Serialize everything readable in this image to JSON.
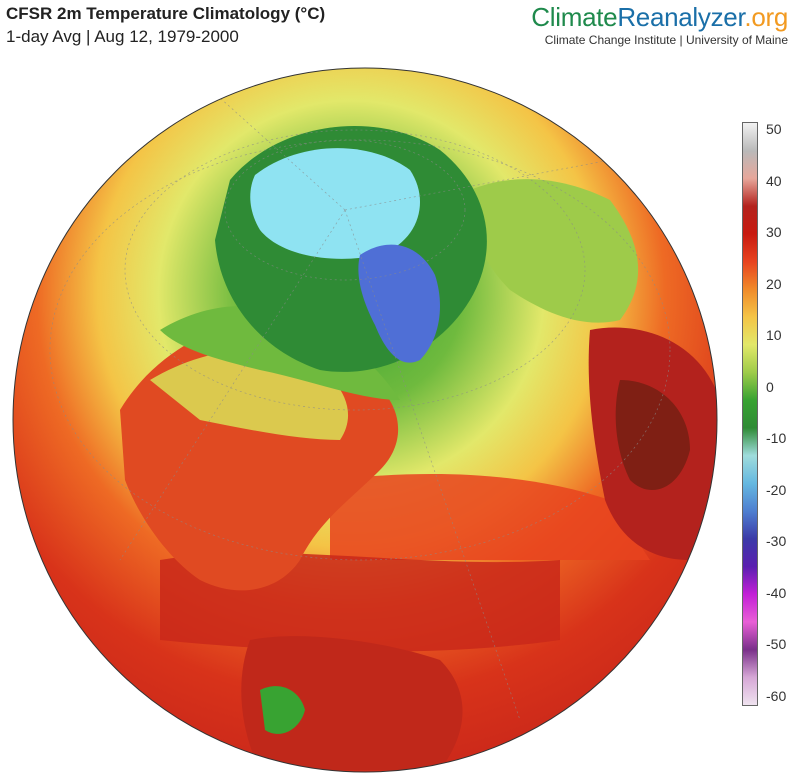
{
  "header": {
    "title": "CFSR 2m Temperature Climatology (°C)",
    "subtitle": "1-day Avg | Aug 12, 1979-2000"
  },
  "brand": {
    "part1": "Climate",
    "part2": "Reanalyzer",
    "part3": ".org",
    "tagline": "Climate Change Institute | University of Maine"
  },
  "colorbar": {
    "ticks": [
      "50",
      "40",
      "30",
      "20",
      "10",
      "0",
      "-10",
      "-20",
      "-30",
      "-40",
      "-50",
      "-60"
    ],
    "stops": [
      "#f2f2f2",
      "#b9b9b9",
      "#e7a79b",
      "#b3221d",
      "#c81a10",
      "#e8431f",
      "#f08a2a",
      "#f4c446",
      "#e2e86a",
      "#9ecb4a",
      "#38a332",
      "#2f8b35",
      "#9fdcdc",
      "#65b8e0",
      "#4f7fd0",
      "#3b3aa8",
      "#5a1fb0",
      "#c21fd6",
      "#e85fd6",
      "#7a2f8a",
      "#d6a7d6",
      "#efe3ef"
    ]
  },
  "map": {
    "projection": "orthographic",
    "view": "North America, North Atlantic, Europe, Africa, northern South America",
    "colors": {
      "ocean_hot": "#d8331a",
      "ocean_warm": "#ee6a24",
      "mid_lat": "#f4c04a",
      "temperate": "#8ec23f",
      "cool": "#2f9a3a",
      "arctic_ice": "#8fe3f2",
      "greenland": "#4f6fd6",
      "desert": "#7f1f14"
    }
  }
}
